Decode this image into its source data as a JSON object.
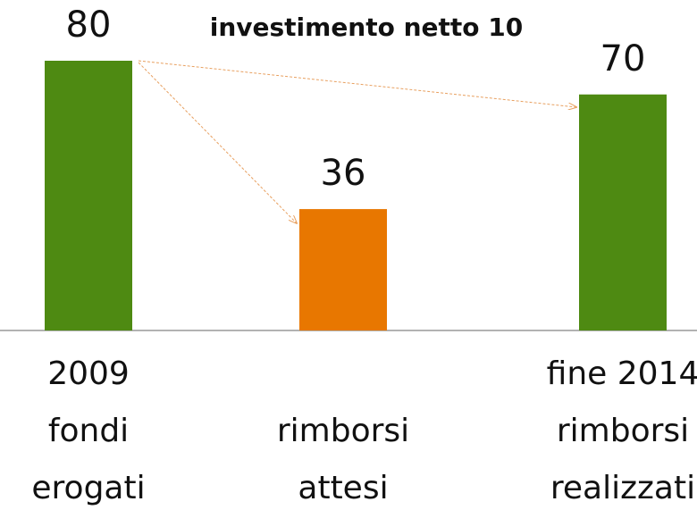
{
  "chart_data": {
    "type": "bar",
    "categories": [
      [
        "2009",
        "fondi",
        "erogati"
      ],
      [
        null,
        "rimborsi",
        "attesi"
      ],
      [
        "fine 2014",
        "rimborsi",
        "realizzati"
      ]
    ],
    "values": [
      80,
      36,
      70
    ],
    "colors": [
      "#4e8a12",
      "#e87700",
      "#4e8a12"
    ],
    "annotation": "investimento netto 10",
    "ylim": [
      0,
      80
    ]
  }
}
